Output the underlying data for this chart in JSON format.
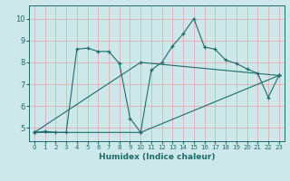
{
  "xlabel": "Humidex (Indice chaleur)",
  "bg_color": "#cce8ea",
  "line_color": "#1e6b6b",
  "grid_color_v": "#e8a0a0",
  "grid_color_h": "#e8a0a0",
  "xlim": [
    -0.5,
    23.5
  ],
  "ylim": [
    4.4,
    10.6
  ],
  "yticks": [
    5,
    6,
    7,
    8,
    9,
    10
  ],
  "xticks": [
    0,
    1,
    2,
    3,
    4,
    5,
    6,
    7,
    8,
    9,
    10,
    11,
    12,
    13,
    14,
    15,
    16,
    17,
    18,
    19,
    20,
    21,
    22,
    23
  ],
  "series": [
    {
      "x": [
        0,
        1,
        2,
        3,
        4,
        5,
        6,
        7,
        8,
        9,
        10,
        11,
        12,
        13,
        14,
        15,
        16,
        17,
        18,
        19,
        20,
        21,
        22,
        23
      ],
      "y": [
        4.8,
        4.85,
        4.8,
        4.8,
        8.6,
        8.65,
        8.5,
        8.5,
        7.95,
        5.45,
        4.8,
        7.65,
        8.0,
        8.75,
        9.3,
        10.0,
        8.7,
        8.6,
        8.1,
        7.95,
        7.7,
        7.5,
        6.4,
        7.4
      ]
    },
    {
      "x": [
        0,
        10,
        23
      ],
      "y": [
        4.8,
        4.8,
        7.4
      ]
    },
    {
      "x": [
        0,
        10,
        23
      ],
      "y": [
        4.8,
        8.0,
        7.4
      ]
    }
  ]
}
